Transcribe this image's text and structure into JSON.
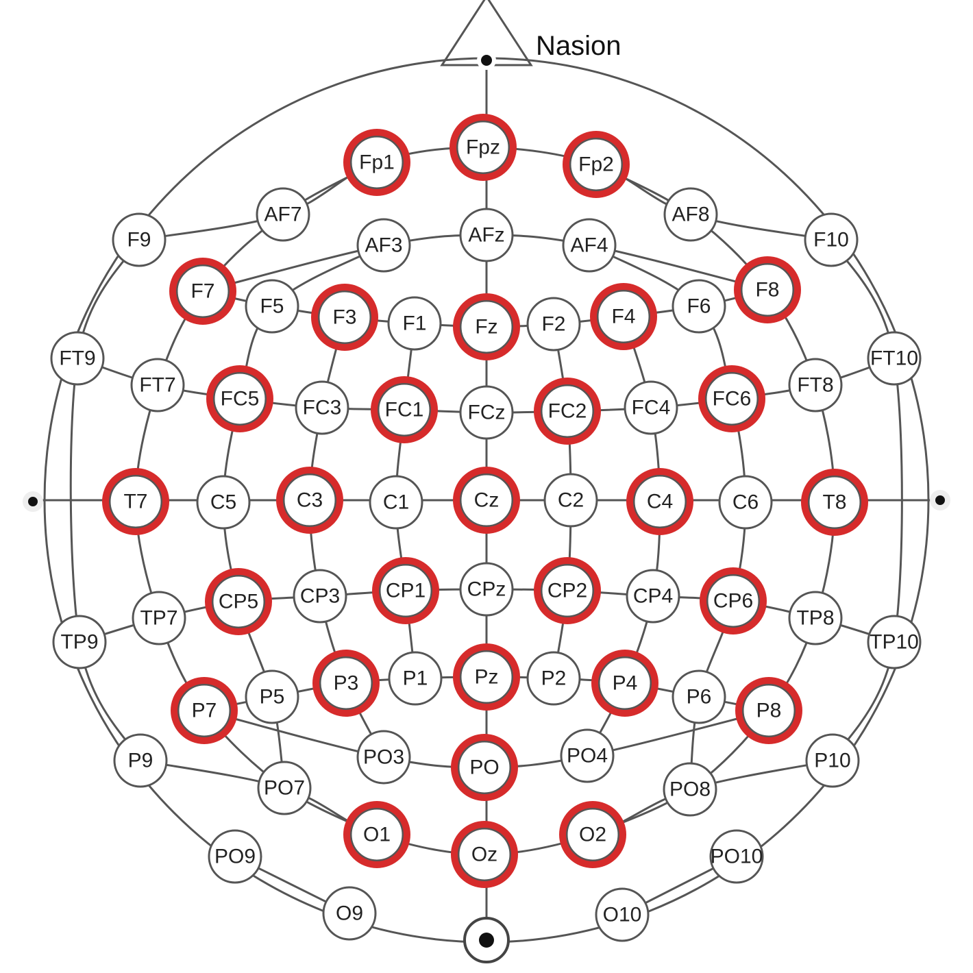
{
  "labels": {
    "nasion": "Nasion"
  },
  "colors": {
    "highlight": "#d62b2b",
    "stroke": "#555555",
    "dot": "#111111"
  },
  "electrodes": [
    {
      "id": "Fpz",
      "hl": true
    },
    {
      "id": "Fp1",
      "hl": true
    },
    {
      "id": "Fp2",
      "hl": true
    },
    {
      "id": "AF7",
      "hl": false
    },
    {
      "id": "AF8",
      "hl": false
    },
    {
      "id": "AF3",
      "hl": false
    },
    {
      "id": "AFz",
      "hl": false
    },
    {
      "id": "AF4",
      "hl": false
    },
    {
      "id": "F9",
      "hl": false
    },
    {
      "id": "F10",
      "hl": false
    },
    {
      "id": "F7",
      "hl": true
    },
    {
      "id": "F5",
      "hl": false
    },
    {
      "id": "F3",
      "hl": true
    },
    {
      "id": "F1",
      "hl": false
    },
    {
      "id": "Fz",
      "hl": true
    },
    {
      "id": "F2",
      "hl": false
    },
    {
      "id": "F4",
      "hl": true
    },
    {
      "id": "F6",
      "hl": false
    },
    {
      "id": "F8",
      "hl": true
    },
    {
      "id": "FT9",
      "hl": false
    },
    {
      "id": "FT7",
      "hl": false
    },
    {
      "id": "FC5",
      "hl": true
    },
    {
      "id": "FC3",
      "hl": false
    },
    {
      "id": "FC1",
      "hl": true
    },
    {
      "id": "FCz",
      "hl": false
    },
    {
      "id": "FC2",
      "hl": true
    },
    {
      "id": "FC4",
      "hl": false
    },
    {
      "id": "FC6",
      "hl": true
    },
    {
      "id": "FT8",
      "hl": false
    },
    {
      "id": "FT10",
      "hl": false
    },
    {
      "id": "T7",
      "hl": true
    },
    {
      "id": "C5",
      "hl": false
    },
    {
      "id": "C3",
      "hl": true
    },
    {
      "id": "C1",
      "hl": false
    },
    {
      "id": "Cz",
      "hl": true
    },
    {
      "id": "C2",
      "hl": false
    },
    {
      "id": "C4",
      "hl": true
    },
    {
      "id": "C6",
      "hl": false
    },
    {
      "id": "T8",
      "hl": true
    },
    {
      "id": "TP9",
      "hl": false
    },
    {
      "id": "TP7",
      "hl": false
    },
    {
      "id": "CP5",
      "hl": true
    },
    {
      "id": "CP3",
      "hl": false
    },
    {
      "id": "CP1",
      "hl": true
    },
    {
      "id": "CPz",
      "hl": false
    },
    {
      "id": "CP2",
      "hl": true
    },
    {
      "id": "CP4",
      "hl": false
    },
    {
      "id": "CP6",
      "hl": true
    },
    {
      "id": "TP8",
      "hl": false
    },
    {
      "id": "TP10",
      "hl": false
    },
    {
      "id": "P9",
      "hl": false
    },
    {
      "id": "P7",
      "hl": true
    },
    {
      "id": "P5",
      "hl": false
    },
    {
      "id": "P3",
      "hl": true
    },
    {
      "id": "P1",
      "hl": false
    },
    {
      "id": "Pz",
      "hl": true
    },
    {
      "id": "P2",
      "hl": false
    },
    {
      "id": "P4",
      "hl": true
    },
    {
      "id": "P6",
      "hl": false
    },
    {
      "id": "P8",
      "hl": true
    },
    {
      "id": "P10",
      "hl": false
    },
    {
      "id": "PO7",
      "hl": false
    },
    {
      "id": "PO3",
      "hl": false
    },
    {
      "id": "PO",
      "hl": true
    },
    {
      "id": "PO4",
      "hl": false
    },
    {
      "id": "PO8",
      "hl": false
    },
    {
      "id": "PO9",
      "hl": false
    },
    {
      "id": "O1",
      "hl": true
    },
    {
      "id": "Oz",
      "hl": true
    },
    {
      "id": "O2",
      "hl": true
    },
    {
      "id": "PO10",
      "hl": false
    },
    {
      "id": "O9",
      "hl": false
    },
    {
      "id": "O10",
      "hl": false
    }
  ]
}
